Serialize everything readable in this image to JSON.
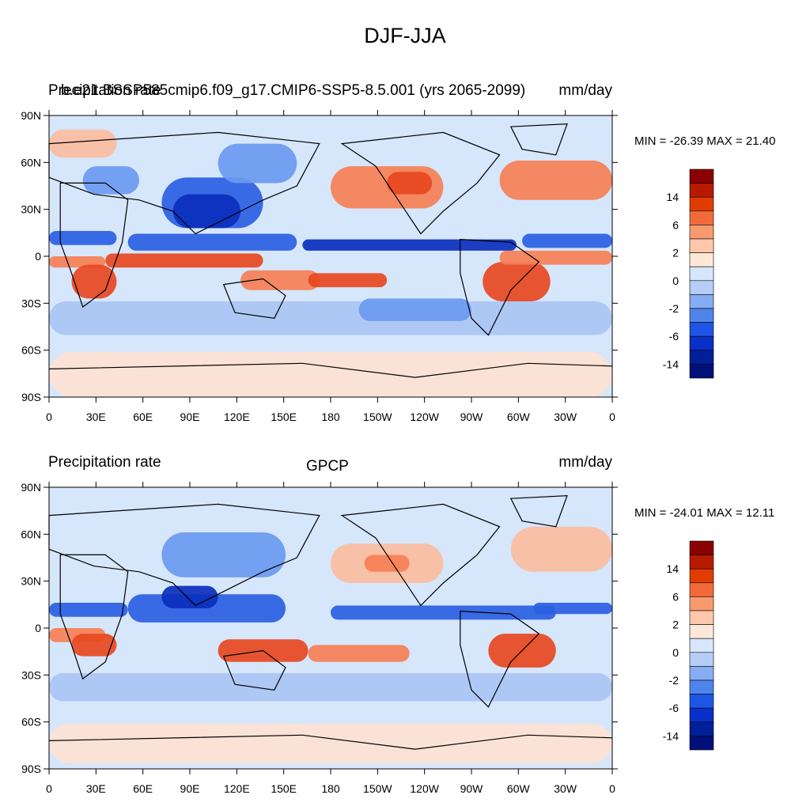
{
  "main_title": "DJF-JJA",
  "panels": [
    {
      "left_label": "Precipitation rate",
      "center_label": "b.e21.BSSP585cmip6.f09_g17.CMIP6-SSP5-8.5.001 (yrs 2065-2099)",
      "right_label": "mm/day",
      "min_max": "MIN = -26.39 MAX =  21.40",
      "min": -26.39,
      "max": 21.4
    },
    {
      "left_label": "Precipitation rate",
      "center_label": "GPCP",
      "right_label": "mm/day",
      "min_max": "MIN = -24.01 MAX =  12.11",
      "min": -24.01,
      "max": 12.11
    }
  ],
  "x_ticks": [
    "0",
    "30E",
    "60E",
    "90E",
    "120E",
    "150E",
    "180",
    "150W",
    "120W",
    "90W",
    "60W",
    "30W",
    "0"
  ],
  "y_ticks": [
    "90N",
    "60N",
    "30N",
    "0",
    "30S",
    "60S",
    "90S"
  ],
  "colorbar_labels": [
    "14",
    "6",
    "2",
    "0",
    "-2",
    "-6",
    "-14"
  ],
  "colorbar_colors": [
    "#8b0000",
    "#b81a00",
    "#e03c00",
    "#f26a3a",
    "#f99a6e",
    "#fcc7ab",
    "#fde8d8",
    "#d6e6fb",
    "#b5cdf7",
    "#86adf3",
    "#4f84ed",
    "#1f55e6",
    "#0a2fc9",
    "#001f9a",
    "#00107a"
  ],
  "field_colors": {
    "strong_pos": "#e8481f",
    "pos": "#f58055",
    "weak_pos": "#fbbda0",
    "faint_pos": "#fde3d3",
    "neutral": "#d6e6fb",
    "weak_neg": "#aac6f5",
    "neg": "#6b9af0",
    "strong_neg": "#2b5fe3",
    "very_neg": "#0b2fbd"
  }
}
